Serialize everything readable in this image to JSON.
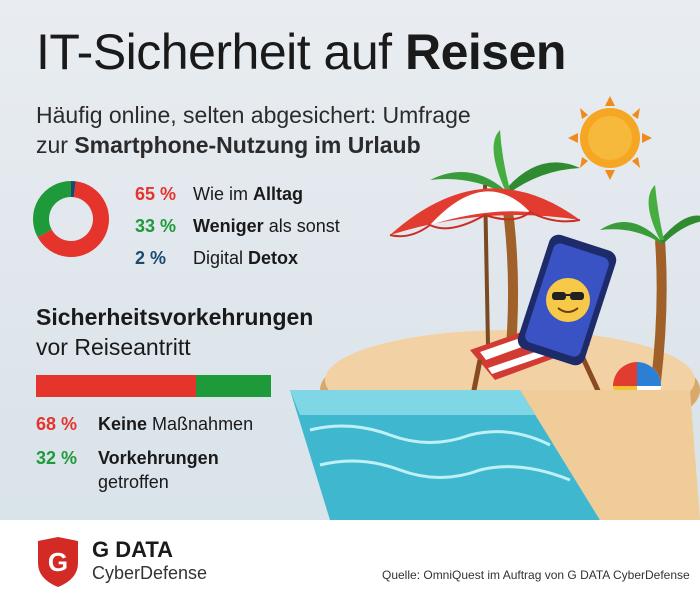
{
  "header": {
    "title_regular": "IT-Sicherheit auf ",
    "title_bold": "Reisen",
    "subtitle_line1": "Häufig online, selten abgesichert: Umfrage",
    "subtitle_line2_regular": "zur ",
    "subtitle_line2_bold": "Smartphone-Nutzung im Urlaub"
  },
  "section2": {
    "title_bold": "Sicherheitsvorkehrungen",
    "title_regular": "vor Reiseantritt"
  },
  "colors": {
    "red": "#e5342b",
    "green": "#1f9a3a",
    "navy": "#1c4a6e"
  },
  "chart_data": [
    {
      "type": "pie",
      "variant": "donut",
      "slices": [
        {
          "value": 65,
          "pct_label": "65 %",
          "label_regular": "Wie im ",
          "label_bold": "Alltag",
          "color": "#e5342b"
        },
        {
          "value": 33,
          "pct_label": "33 %",
          "label_regular": "",
          "label_bold": "Weniger",
          "label_tail": " als sonst",
          "color": "#1f9a3a"
        },
        {
          "value": 2,
          "pct_label": "2 %",
          "label_regular": "Digital ",
          "label_bold": "Detox",
          "color": "#1c4a6e"
        }
      ]
    },
    {
      "type": "bar",
      "variant": "stacked-horizontal",
      "segments": [
        {
          "value": 68,
          "pct_label": "68 %",
          "label_bold": "Keine",
          "label_regular": " Maßnahmen",
          "color": "#e5342b"
        },
        {
          "value": 32,
          "pct_label": "32 %",
          "label_bold": "Vorkehrungen",
          "label_regular": "getroffen",
          "color": "#1f9a3a"
        }
      ]
    }
  ],
  "brand": {
    "line1": "G DATA",
    "line2": "CyberDefense",
    "logo_letter": "G"
  },
  "source": "Quelle: OmniQuest im Auftrag von G DATA CyberDefense",
  "illustration": {
    "icon": "beach-smartphone-illustration"
  }
}
